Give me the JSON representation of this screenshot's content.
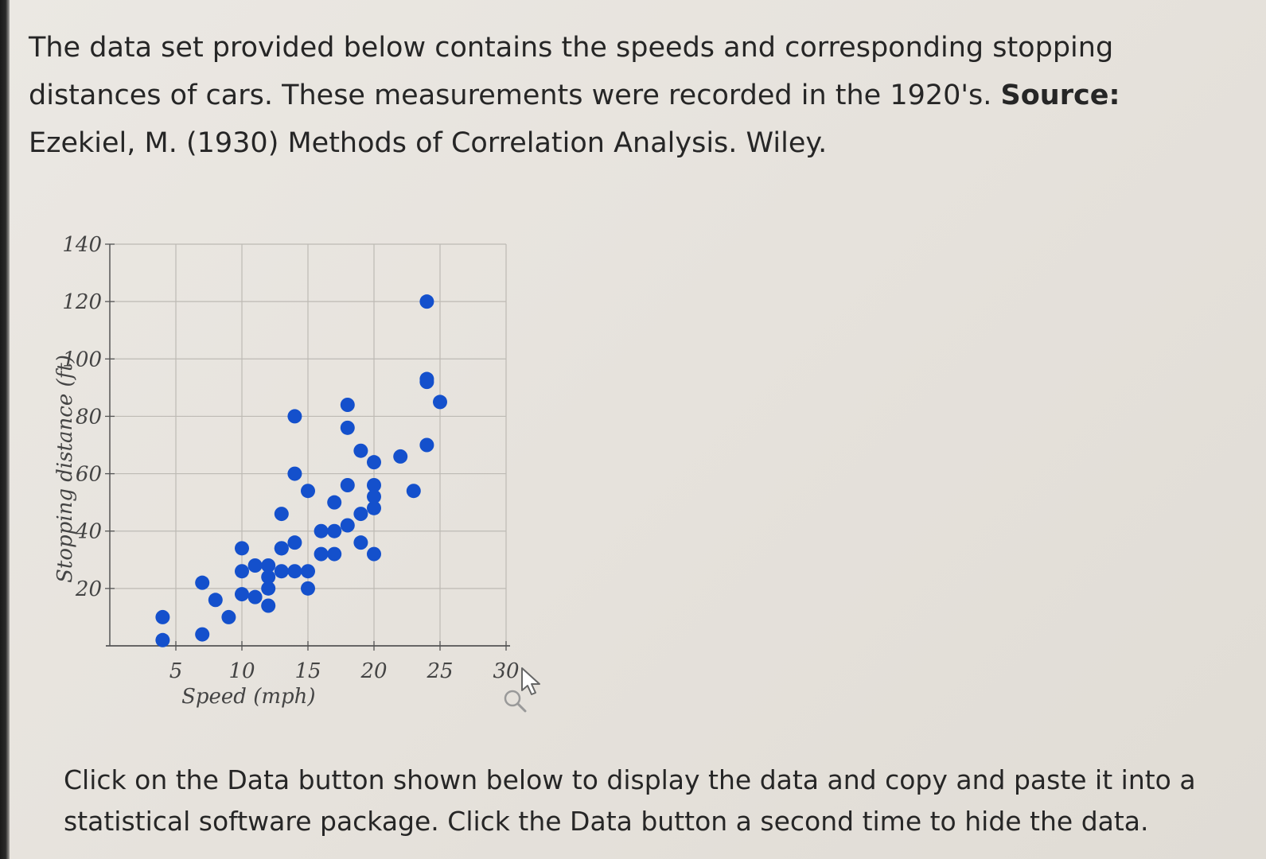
{
  "intro": {
    "text": "The data set provided below contains the speeds and corresponding stopping distances of cars. These measurements were recorded in the 1920's.",
    "source_label": "Source:",
    "source_text": "Ezekiel, M. (1930) Methods of Correlation Analysis. Wiley."
  },
  "instruction": "Click on the Data button shown below to display the data and copy and paste it into a statistical software package. Click the Data button a second time to hide the data.",
  "icons": {
    "cursor": "pointer-cursor-icon",
    "zoom": "magnifier-icon"
  },
  "chart_data": {
    "type": "scatter",
    "title": "",
    "xlabel": "Speed (mph)",
    "ylabel": "Stopping distance (ft)",
    "xlim": [
      0,
      30
    ],
    "ylim": [
      0,
      140
    ],
    "xticks": [
      5,
      10,
      15,
      20,
      25,
      30
    ],
    "yticks": [
      20,
      40,
      60,
      80,
      100,
      120,
      140
    ],
    "grid": true,
    "marker_color": "#1450cc",
    "points": [
      {
        "x": 4,
        "y": 2
      },
      {
        "x": 4,
        "y": 10
      },
      {
        "x": 7,
        "y": 4
      },
      {
        "x": 7,
        "y": 22
      },
      {
        "x": 8,
        "y": 16
      },
      {
        "x": 9,
        "y": 10
      },
      {
        "x": 10,
        "y": 18
      },
      {
        "x": 10,
        "y": 26
      },
      {
        "x": 10,
        "y": 34
      },
      {
        "x": 11,
        "y": 17
      },
      {
        "x": 11,
        "y": 28
      },
      {
        "x": 12,
        "y": 14
      },
      {
        "x": 12,
        "y": 20
      },
      {
        "x": 12,
        "y": 24
      },
      {
        "x": 12,
        "y": 28
      },
      {
        "x": 13,
        "y": 26
      },
      {
        "x": 13,
        "y": 34
      },
      {
        "x": 13,
        "y": 34
      },
      {
        "x": 13,
        "y": 46
      },
      {
        "x": 14,
        "y": 26
      },
      {
        "x": 14,
        "y": 36
      },
      {
        "x": 14,
        "y": 60
      },
      {
        "x": 14,
        "y": 80
      },
      {
        "x": 15,
        "y": 20
      },
      {
        "x": 15,
        "y": 26
      },
      {
        "x": 15,
        "y": 54
      },
      {
        "x": 16,
        "y": 32
      },
      {
        "x": 16,
        "y": 40
      },
      {
        "x": 17,
        "y": 32
      },
      {
        "x": 17,
        "y": 40
      },
      {
        "x": 17,
        "y": 50
      },
      {
        "x": 18,
        "y": 42
      },
      {
        "x": 18,
        "y": 56
      },
      {
        "x": 18,
        "y": 76
      },
      {
        "x": 18,
        "y": 84
      },
      {
        "x": 19,
        "y": 36
      },
      {
        "x": 19,
        "y": 46
      },
      {
        "x": 19,
        "y": 68
      },
      {
        "x": 20,
        "y": 32
      },
      {
        "x": 20,
        "y": 48
      },
      {
        "x": 20,
        "y": 52
      },
      {
        "x": 20,
        "y": 56
      },
      {
        "x": 20,
        "y": 64
      },
      {
        "x": 22,
        "y": 66
      },
      {
        "x": 23,
        "y": 54
      },
      {
        "x": 24,
        "y": 70
      },
      {
        "x": 24,
        "y": 92
      },
      {
        "x": 24,
        "y": 93
      },
      {
        "x": 24,
        "y": 120
      },
      {
        "x": 25,
        "y": 85
      }
    ]
  }
}
